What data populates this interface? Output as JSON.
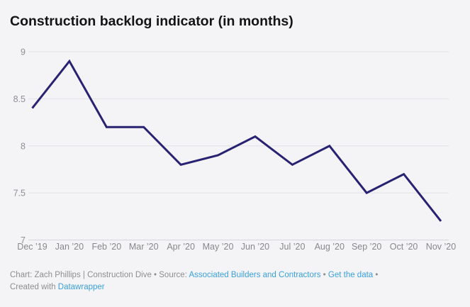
{
  "chart_data": {
    "type": "line",
    "title": "Construction backlog indicator (in months)",
    "categories": [
      "Dec ’19",
      "Jan ’20",
      "Feb ’20",
      "Mar ’20",
      "Apr ’20",
      "May ’20",
      "Jun ’20",
      "Jul ’20",
      "Aug ’20",
      "Sep ’20",
      "Oct ’20",
      "Nov ’20"
    ],
    "values": [
      8.4,
      8.9,
      8.2,
      8.2,
      7.8,
      7.9,
      8.1,
      7.8,
      8.0,
      7.5,
      7.7,
      7.2
    ],
    "xlabel": "",
    "ylabel": "",
    "y_ticks": [
      7,
      7.5,
      8,
      8.5,
      9
    ],
    "ylim": [
      7,
      9.2
    ],
    "grid": "horizontal",
    "legend": "none",
    "line_color": "#282272"
  },
  "colors": {
    "background": "#f4f4f6",
    "gridline": "#e2e2e6",
    "line": "#282272",
    "axis_text": "#8f8f94",
    "footer_text": "#8e8e90",
    "link": "#3aa0da"
  },
  "footer": {
    "line1": [
      {
        "type": "text",
        "name": "footer-byline-text",
        "text": "Chart: Zach Phillips | Construction Dive • Source: "
      },
      {
        "type": "link",
        "name": "source-link",
        "text": "Associated Builders and Contractors"
      },
      {
        "type": "text",
        "name": "footer-separator",
        "text": " • "
      },
      {
        "type": "link",
        "name": "get-the-data-link",
        "text": "Get the data"
      },
      {
        "type": "text",
        "name": "footer-separator",
        "text": " •"
      }
    ],
    "line2": [
      {
        "type": "text",
        "name": "created-with-text",
        "text": "Created with "
      },
      {
        "type": "link",
        "name": "datawrapper-link",
        "text": "Datawrapper"
      }
    ]
  }
}
